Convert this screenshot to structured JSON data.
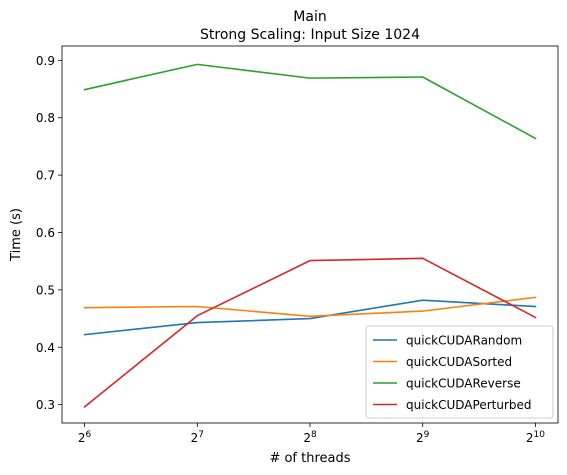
{
  "chart_data": {
    "type": "line",
    "title": "Main",
    "subtitle": "Strong Scaling: Input Size 1024",
    "xlabel": "# of threads",
    "ylabel": "Time (s)",
    "x_scale": "log2",
    "x": [
      64,
      128,
      256,
      512,
      1024
    ],
    "x_tick_labels": [
      {
        "base": "2",
        "exp": "6"
      },
      {
        "base": "2",
        "exp": "7"
      },
      {
        "base": "2",
        "exp": "8"
      },
      {
        "base": "2",
        "exp": "9"
      },
      {
        "base": "2",
        "exp": "10"
      }
    ],
    "y_ticks": [
      0.3,
      0.4,
      0.5,
      0.6,
      0.7,
      0.8,
      0.9
    ],
    "y_tick_labels": [
      "0.3",
      "0.4",
      "0.5",
      "0.6",
      "0.7",
      "0.8",
      "0.9"
    ],
    "ylim": [
      0.268,
      0.925
    ],
    "grid": false,
    "legend_position": "lower-right",
    "series": [
      {
        "name": "quickCUDARandom",
        "color": "#1f77b4",
        "values": [
          0.422,
          0.443,
          0.45,
          0.482,
          0.471
        ]
      },
      {
        "name": "quickCUDASorted",
        "color": "#ff7f0e",
        "values": [
          0.469,
          0.471,
          0.454,
          0.463,
          0.487
        ]
      },
      {
        "name": "quickCUDAReverse",
        "color": "#2ca02c",
        "values": [
          0.849,
          0.893,
          0.869,
          0.871,
          0.764
        ]
      },
      {
        "name": "quickCUDAPerturbed",
        "color": "#d62728",
        "values": [
          0.296,
          0.455,
          0.551,
          0.555,
          0.452
        ]
      }
    ]
  }
}
